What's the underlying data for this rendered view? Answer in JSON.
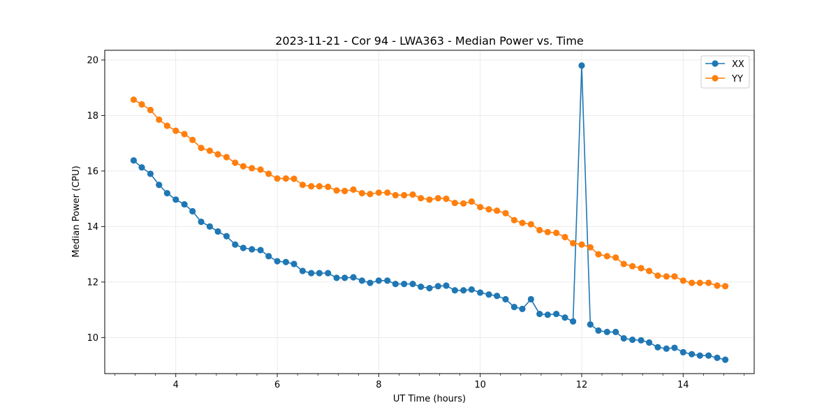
{
  "chart_data": {
    "type": "line",
    "title": "2023-11-21 - Cor 94 - LWA363 - Median Power vs. Time",
    "xlabel": "UT Time (hours)",
    "ylabel": "Median Power (CPU)",
    "xlim": [
      2.6,
      15.4
    ],
    "ylim": [
      8.7,
      20.35
    ],
    "xticks": [
      4,
      6,
      8,
      10,
      12,
      14
    ],
    "xtick_labels": [
      "4",
      "6",
      "8",
      "10",
      "12",
      "14"
    ],
    "xminor_step": 0.4,
    "yticks": [
      10,
      12,
      14,
      16,
      18,
      20
    ],
    "ytick_labels": [
      "10",
      "12",
      "14",
      "16",
      "18",
      "20"
    ],
    "grid": true,
    "legend_position": "top-right",
    "x": [
      3.17,
      3.33,
      3.5,
      3.67,
      3.83,
      4.0,
      4.17,
      4.33,
      4.5,
      4.67,
      4.83,
      5.0,
      5.17,
      5.33,
      5.5,
      5.67,
      5.83,
      6.0,
      6.17,
      6.33,
      6.5,
      6.67,
      6.83,
      7.0,
      7.17,
      7.33,
      7.5,
      7.67,
      7.83,
      8.0,
      8.17,
      8.33,
      8.5,
      8.67,
      8.83,
      9.0,
      9.17,
      9.33,
      9.5,
      9.67,
      9.83,
      10.0,
      10.17,
      10.33,
      10.5,
      10.67,
      10.83,
      11.0,
      11.17,
      11.33,
      11.5,
      11.67,
      11.83,
      12.0,
      12.17,
      12.33,
      12.5,
      12.67,
      12.83,
      13.0,
      13.17,
      13.33,
      13.5,
      13.67,
      13.83,
      14.0,
      14.17,
      14.33,
      14.5,
      14.67,
      14.83
    ],
    "series": [
      {
        "name": "XX",
        "color": "#1f77b4",
        "values": [
          16.38,
          16.13,
          15.9,
          15.5,
          15.2,
          14.97,
          14.8,
          14.55,
          14.17,
          14.0,
          13.82,
          13.65,
          13.35,
          13.23,
          13.18,
          13.15,
          12.93,
          12.75,
          12.72,
          12.65,
          12.4,
          12.32,
          12.32,
          12.32,
          12.15,
          12.15,
          12.17,
          12.05,
          11.97,
          12.05,
          12.05,
          11.93,
          11.93,
          11.93,
          11.83,
          11.78,
          11.85,
          11.87,
          11.7,
          11.7,
          11.73,
          11.62,
          11.55,
          11.5,
          11.38,
          11.1,
          11.03,
          11.38,
          10.85,
          10.82,
          10.85,
          10.72,
          10.58,
          19.8,
          10.47,
          10.25,
          10.2,
          10.2,
          9.97,
          9.92,
          9.9,
          9.82,
          9.65,
          9.6,
          9.63,
          9.47,
          9.4,
          9.35,
          9.35,
          9.27,
          9.2
        ]
      },
      {
        "name": "YY",
        "color": "#ff7f0e",
        "values": [
          18.57,
          18.4,
          18.2,
          17.85,
          17.63,
          17.45,
          17.33,
          17.12,
          16.83,
          16.73,
          16.6,
          16.5,
          16.3,
          16.17,
          16.1,
          16.05,
          15.9,
          15.73,
          15.73,
          15.72,
          15.5,
          15.45,
          15.45,
          15.43,
          15.3,
          15.28,
          15.33,
          15.2,
          15.17,
          15.22,
          15.22,
          15.13,
          15.13,
          15.15,
          15.02,
          14.97,
          15.02,
          15.0,
          14.85,
          14.83,
          14.9,
          14.7,
          14.62,
          14.57,
          14.48,
          14.23,
          14.13,
          14.08,
          13.87,
          13.8,
          13.77,
          13.62,
          13.4,
          13.35,
          13.25,
          13.0,
          12.93,
          12.88,
          12.65,
          12.57,
          12.5,
          12.4,
          12.23,
          12.2,
          12.2,
          12.05,
          11.97,
          11.97,
          11.97,
          11.87,
          11.85
        ]
      }
    ]
  }
}
